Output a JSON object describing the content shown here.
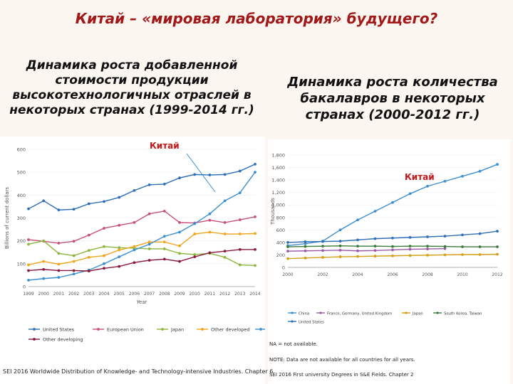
{
  "slide": {
    "title": "Китай – «мировая лаборатория» будущего?",
    "left_heading": "Динамика роста добавленной стоимости продукции высокотехнологичных отраслей в некоторых странах (1999-2014 гг.)",
    "right_heading": "Динамика роста количества бакалавров в некоторых странах  (2000-2012 гг.)",
    "china_label_left": "Китай",
    "china_label_right": "Китай"
  },
  "colors": {
    "title": "#a01818",
    "china": "#3d8fd0",
    "united_states": "#2f6fb7",
    "eu": "#c8517a",
    "japan": "#8cb63c",
    "other_developed": "#f2a41c",
    "other_developing": "#8b1a3a",
    "fgu": "#9b5aa8",
    "south_korea_taiwan": "#3c7a3c",
    "japan_right": "#d4a017"
  },
  "chart_data": [
    {
      "type": "line",
      "xlabel": "Year",
      "ylabel": "Billions of current dollars",
      "ylim": [
        0,
        600
      ],
      "yticks": [
        "0",
        "100",
        "200",
        "300",
        "400",
        "500",
        "600"
      ],
      "x": [
        "1999",
        "2000",
        "2001",
        "2002",
        "2003",
        "2004",
        "2005",
        "2006",
        "2007",
        "2008",
        "2009",
        "2010",
        "2011",
        "2012",
        "2013",
        "2014"
      ],
      "xticklabels": [
        "1999",
        "2000",
        "2001",
        "2002",
        "2003",
        "2004",
        "2005",
        "2006",
        "2007",
        "2008",
        "2009",
        "2010",
        "2011",
        "2012",
        "2013",
        "2014"
      ],
      "series": [
        {
          "name": "United States",
          "color_key": "united_states",
          "values": [
            340,
            375,
            335,
            338,
            362,
            372,
            390,
            420,
            445,
            448,
            475,
            490,
            488,
            490,
            505,
            535
          ]
        },
        {
          "name": "European Union",
          "color_key": "eu",
          "values": [
            205,
            198,
            190,
            198,
            225,
            255,
            268,
            280,
            318,
            330,
            280,
            278,
            290,
            280,
            292,
            305
          ]
        },
        {
          "name": "Japan",
          "color_key": "japan",
          "values": [
            185,
            200,
            145,
            135,
            158,
            175,
            170,
            168,
            165,
            165,
            145,
            140,
            145,
            128,
            95,
            92
          ]
        },
        {
          "name": "Other developed",
          "color_key": "other_developed",
          "values": [
            95,
            110,
            98,
            110,
            128,
            135,
            160,
            175,
            195,
            195,
            178,
            230,
            238,
            230,
            230,
            232
          ]
        },
        {
          "name": "China",
          "color_key": "china",
          "values": [
            28,
            35,
            40,
            55,
            72,
            100,
            130,
            160,
            185,
            220,
            238,
            275,
            318,
            375,
            410,
            500
          ]
        },
        {
          "name": "Other developing",
          "color_key": "other_developing",
          "values": [
            70,
            75,
            70,
            70,
            68,
            80,
            88,
            105,
            115,
            120,
            110,
            130,
            148,
            155,
            162,
            162
          ]
        }
      ]
    },
    {
      "type": "line",
      "xlabel": "",
      "ylabel": "Thousands",
      "ylim": [
        0,
        1800
      ],
      "yticks": [
        "0",
        "200",
        "400",
        "600",
        "800",
        "1,000",
        "1,200",
        "1,400",
        "1,600",
        "1,800"
      ],
      "x": [
        "2000",
        "2001",
        "2002",
        "2003",
        "2004",
        "2005",
        "2006",
        "2007",
        "2008",
        "2009",
        "2010",
        "2011",
        "2012"
      ],
      "xticklabels": [
        "2000",
        "2002",
        "2004",
        "2006",
        "2008",
        "2010",
        "2012"
      ],
      "legend": [
        "China",
        "France, Germany, United Kingdom",
        "Japan",
        "South Korea, Taiwan",
        "United States"
      ],
      "series": [
        {
          "name": "China",
          "color_key": "china",
          "values": [
            350,
            380,
            420,
            600,
            760,
            900,
            1040,
            1180,
            1300,
            1380,
            1460,
            1540,
            1650
          ]
        },
        {
          "name": "United States",
          "color_key": "united_states",
          "values": [
            400,
            410,
            415,
            420,
            440,
            460,
            470,
            480,
            490,
            500,
            520,
            540,
            580
          ]
        },
        {
          "name": "France, Germany, United Kingdom",
          "color_key": "fgu",
          "values": [
            260,
            265,
            270,
            275,
            265,
            270,
            280,
            290,
            295,
            300,
            null,
            null,
            null
          ]
        },
        {
          "name": "Japan",
          "color_key": "japan_right",
          "values": [
            140,
            150,
            160,
            170,
            175,
            180,
            185,
            190,
            195,
            200,
            205,
            205,
            210
          ]
        },
        {
          "name": "South Korea, Taiwan",
          "color_key": "south_korea_taiwan",
          "values": [
            330,
            335,
            340,
            345,
            340,
            340,
            335,
            340,
            340,
            335,
            330,
            330,
            330
          ]
        }
      ]
    }
  ],
  "notes": {
    "na": "NA = not available.",
    "note": "NOTE: Data are not available for all countries for all years.",
    "source_right": "SEI 2016  First university Degrees in S&E Fields. Chapter 2",
    "source_left": "SEI 2016  Worldwide Distribution of Knowledge- and Technology-intensive Industries. Chapter 6"
  }
}
